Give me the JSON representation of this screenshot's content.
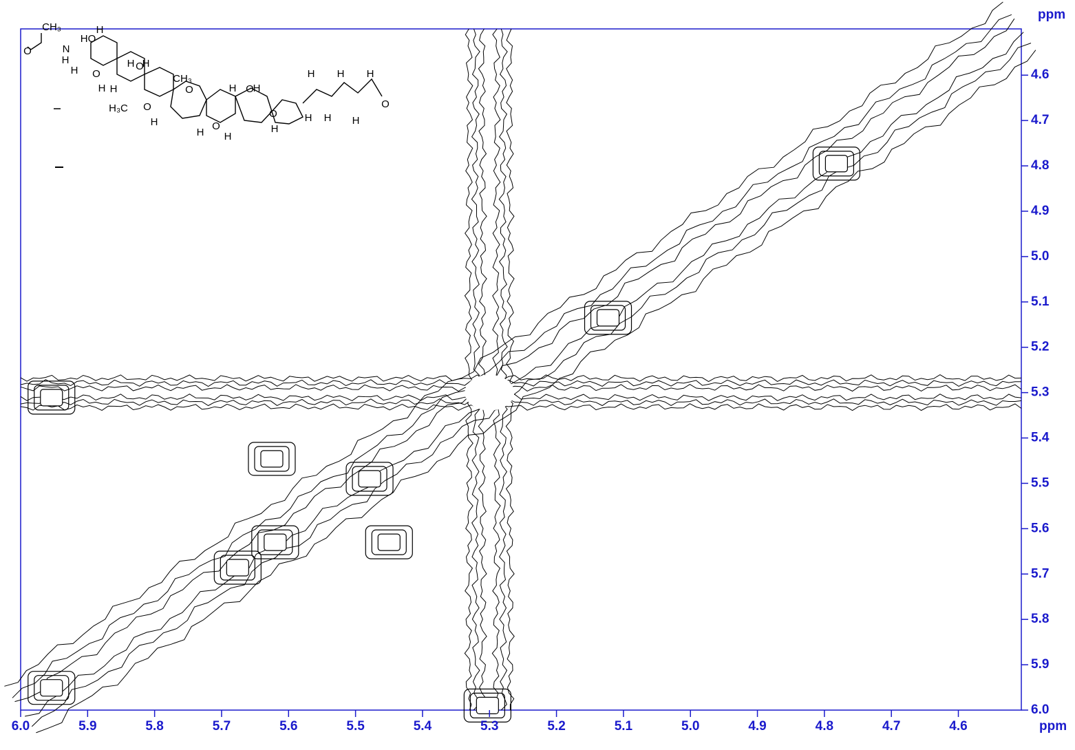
{
  "chart_data": {
    "type": "contour",
    "x_label": "ppm",
    "y_label": "ppm",
    "xlim": [
      6.0,
      4.506
    ],
    "ylim": [
      6.0,
      4.498
    ],
    "xticks": [
      {
        "value": 6.0,
        "label": "6.0"
      },
      5.9,
      5.8,
      5.7,
      5.6,
      5.5,
      5.4,
      5.3,
      5.2,
      5.1,
      {
        "value": 5.0,
        "label": "5.0"
      },
      4.9,
      4.8,
      4.7,
      4.6
    ],
    "yticks": [
      4.6,
      4.7,
      4.8,
      4.9,
      {
        "value": 5.0,
        "label": "5.0"
      },
      5.1,
      5.2,
      5.3,
      5.4,
      5.5,
      5.6,
      5.7,
      5.8,
      5.9,
      {
        "value": 6.0,
        "label": "6.0"
      }
    ],
    "axis_color": "#1a1acc",
    "contour_color": "#000000",
    "peaks": {
      "x": [
        5.3,
        4.782,
        5.123,
        5.479,
        5.625,
        5.45,
        5.62,
        5.676,
        5.954,
        5.303,
        5.954
      ],
      "y": [
        5.3,
        4.795,
        5.135,
        5.49,
        5.446,
        5.63,
        5.63,
        5.686,
        5.951,
        5.99,
        5.311
      ]
    }
  },
  "structure": {
    "labels": [
      "CH₃",
      "O",
      "N",
      "H",
      "HO",
      "H",
      "H",
      "O",
      "H",
      "H",
      "O",
      "H",
      "H",
      "H₃C",
      "O",
      "H",
      "CH₃",
      "O",
      "H",
      "O",
      "H",
      "O",
      "H",
      "H",
      "O",
      "H",
      "H",
      "H",
      "H",
      "O",
      "H",
      "H",
      "H"
    ]
  }
}
